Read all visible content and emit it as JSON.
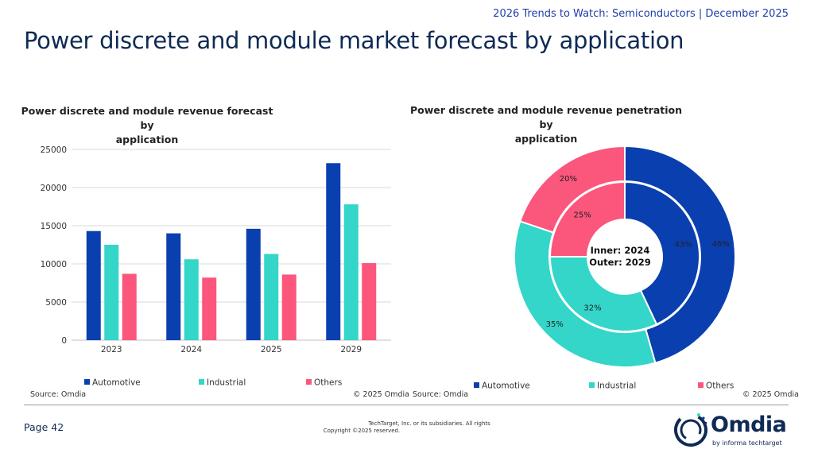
{
  "header": {
    "subtitle": "2026 Trends to Watch: Semiconductors | December 2025",
    "title": "Power discrete and module market forecast by application"
  },
  "colors": {
    "automotive": "#0a3fb0",
    "industrial": "#33d6c8",
    "others": "#fb567c",
    "title": "#0f2a55"
  },
  "chart_data": [
    {
      "type": "bar",
      "title_line1": "Power discrete and module revenue forecast by",
      "title_line2": "application",
      "categories": [
        "2023",
        "2024",
        "2025",
        "2029"
      ],
      "series": [
        {
          "name": "Automotive",
          "values": [
            14300,
            14000,
            14600,
            23200
          ]
        },
        {
          "name": "Industrial",
          "values": [
            12500,
            10600,
            11300,
            17800
          ]
        },
        {
          "name": "Others",
          "values": [
            8700,
            8200,
            8600,
            10100
          ]
        }
      ],
      "ylim": [
        0,
        25000
      ],
      "yticks": [
        "25000",
        "20000",
        "15000",
        "10000",
        "5000",
        "0"
      ],
      "grid": true,
      "legend_position": "bottom",
      "source": "Source: Omdia",
      "copyright": "© 2025 Omdia"
    },
    {
      "type": "pie",
      "title_line1": "Power discrete and module revenue penetration by",
      "title_line2": "application",
      "center_line1": "Inner: 2024",
      "center_line2": "Outer: 2029",
      "labels": [
        "Automotive",
        "Industrial",
        "Others"
      ],
      "inner_2024": [
        43,
        32,
        25
      ],
      "outer_2029": [
        46,
        35,
        20
      ],
      "inner_labels": [
        "43%",
        "32%",
        "25%"
      ],
      "outer_labels": [
        "46%",
        "35%",
        "20%"
      ],
      "legend_position": "bottom",
      "source": "Source: Omdia",
      "copyright": "© 2025 Omdia"
    }
  ],
  "footer": {
    "page": "Page 42",
    "copyright_line1": "TechTarget, Inc. or its subsidiaries. All rights",
    "copyright_line2": "Copyright ©2025 reserved.",
    "logo_word": "Omdia",
    "logo_byline": "by informa techtarget"
  }
}
